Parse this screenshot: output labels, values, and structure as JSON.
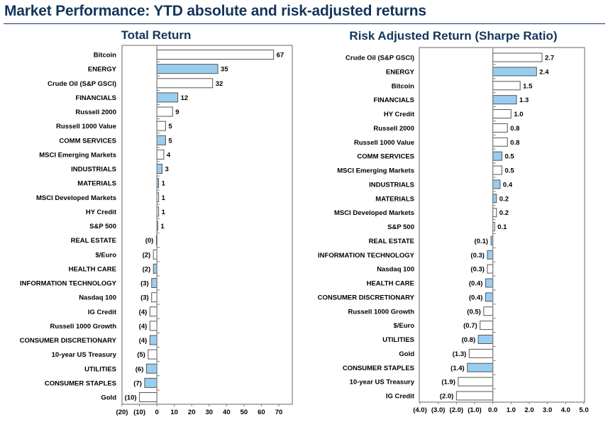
{
  "title": "Market Performance: YTD absolute and risk-adjusted returns",
  "colors": {
    "sector": "#99cdf0",
    "other": "#ffffff",
    "title": "#13355b"
  },
  "chart_data": [
    {
      "type": "bar",
      "orientation": "horizontal",
      "title": "Total Return",
      "xlim": [
        -20,
        75
      ],
      "ticks": [
        -20,
        -10,
        0,
        10,
        20,
        30,
        40,
        50,
        60,
        70
      ],
      "tick_labels": [
        "(20)",
        "(10)",
        "0",
        "10",
        "20",
        "30",
        "40",
        "50",
        "60",
        "70"
      ],
      "items": [
        {
          "label": "Bitcoin",
          "value": 67,
          "display": "67",
          "sector": false
        },
        {
          "label": "ENERGY",
          "value": 35,
          "display": "35",
          "sector": true
        },
        {
          "label": "Crude Oil (S&P GSCI)",
          "value": 32,
          "display": "32",
          "sector": false
        },
        {
          "label": "FINANCIALS",
          "value": 12,
          "display": "12",
          "sector": true
        },
        {
          "label": "Russell 2000",
          "value": 9,
          "display": "9",
          "sector": false
        },
        {
          "label": "Russell 1000 Value",
          "value": 5,
          "display": "5",
          "sector": false
        },
        {
          "label": "COMM SERVICES",
          "value": 5,
          "display": "5",
          "sector": true
        },
        {
          "label": "MSCI Emerging Markets",
          "value": 4,
          "display": "4",
          "sector": false
        },
        {
          "label": "INDUSTRIALS",
          "value": 3,
          "display": "3",
          "sector": true
        },
        {
          "label": "MATERIALS",
          "value": 1,
          "display": "1",
          "sector": true
        },
        {
          "label": "MSCI Developed Markets",
          "value": 1,
          "display": "1",
          "sector": false
        },
        {
          "label": "HY Credit",
          "value": 1,
          "display": "1",
          "sector": false
        },
        {
          "label": "S&P 500",
          "value": 0.5,
          "display": "1",
          "sector": false
        },
        {
          "label": "REAL ESTATE",
          "value": -0.3,
          "display": "(0)",
          "sector": true
        },
        {
          "label": "$/Euro",
          "value": -2,
          "display": "(2)",
          "sector": false
        },
        {
          "label": "HEALTH CARE",
          "value": -2,
          "display": "(2)",
          "sector": true
        },
        {
          "label": "INFORMATION TECHNOLOGY",
          "value": -3,
          "display": "(3)",
          "sector": true
        },
        {
          "label": "Nasdaq 100",
          "value": -3,
          "display": "(3)",
          "sector": false
        },
        {
          "label": "IG Credit",
          "value": -4,
          "display": "(4)",
          "sector": false
        },
        {
          "label": "Russell 1000 Growth",
          "value": -4,
          "display": "(4)",
          "sector": false
        },
        {
          "label": "CONSUMER DISCRETIONARY",
          "value": -4,
          "display": "(4)",
          "sector": true
        },
        {
          "label": "10-year US Treasury",
          "value": -5,
          "display": "(5)",
          "sector": false
        },
        {
          "label": "UTILITIES",
          "value": -6,
          "display": "(6)",
          "sector": true
        },
        {
          "label": "CONSUMER STAPLES",
          "value": -7,
          "display": "(7)",
          "sector": true
        },
        {
          "label": "Gold",
          "value": -10,
          "display": "(10)",
          "sector": false
        }
      ]
    },
    {
      "type": "bar",
      "orientation": "horizontal",
      "title": "Risk Adjusted Return (Sharpe Ratio)",
      "xlim": [
        -4,
        5
      ],
      "ticks": [
        -4,
        -3,
        -2,
        -1,
        0,
        1,
        2,
        3,
        4,
        5
      ],
      "tick_labels": [
        "(4.0)",
        "(3.0)",
        "(2.0)",
        "(1.0)",
        "0.0",
        "1.0",
        "2.0",
        "3.0",
        "4.0",
        "5.0"
      ],
      "items": [
        {
          "label": "Crude Oil (S&P GSCI)",
          "value": 2.7,
          "display": "2.7",
          "sector": false
        },
        {
          "label": "ENERGY",
          "value": 2.4,
          "display": "2.4",
          "sector": true
        },
        {
          "label": "Bitcoin",
          "value": 1.5,
          "display": "1.5",
          "sector": false
        },
        {
          "label": "FINANCIALS",
          "value": 1.3,
          "display": "1.3",
          "sector": true
        },
        {
          "label": "HY Credit",
          "value": 1.0,
          "display": "1.0",
          "sector": false
        },
        {
          "label": "Russell 2000",
          "value": 0.8,
          "display": "0.8",
          "sector": false
        },
        {
          "label": "Russell 1000 Value",
          "value": 0.8,
          "display": "0.8",
          "sector": false
        },
        {
          "label": "COMM SERVICES",
          "value": 0.5,
          "display": "0.5",
          "sector": true
        },
        {
          "label": "MSCI Emerging Markets",
          "value": 0.5,
          "display": "0.5",
          "sector": false
        },
        {
          "label": "INDUSTRIALS",
          "value": 0.4,
          "display": "0.4",
          "sector": true
        },
        {
          "label": "MATERIALS",
          "value": 0.2,
          "display": "0.2",
          "sector": true
        },
        {
          "label": "MSCI Developed Markets",
          "value": 0.2,
          "display": "0.2",
          "sector": false
        },
        {
          "label": "S&P 500",
          "value": 0.1,
          "display": "0.1",
          "sector": false
        },
        {
          "label": "REAL ESTATE",
          "value": -0.1,
          "display": "(0.1)",
          "sector": true
        },
        {
          "label": "INFORMATION TECHNOLOGY",
          "value": -0.3,
          "display": "(0.3)",
          "sector": true
        },
        {
          "label": "Nasdaq 100",
          "value": -0.3,
          "display": "(0.3)",
          "sector": false
        },
        {
          "label": "HEALTH CARE",
          "value": -0.4,
          "display": "(0.4)",
          "sector": true
        },
        {
          "label": "CONSUMER DISCRETIONARY",
          "value": -0.4,
          "display": "(0.4)",
          "sector": true
        },
        {
          "label": "Russell 1000 Growth",
          "value": -0.5,
          "display": "(0.5)",
          "sector": false
        },
        {
          "label": "$/Euro",
          "value": -0.7,
          "display": "(0.7)",
          "sector": false
        },
        {
          "label": "UTILITIES",
          "value": -0.8,
          "display": "(0.8)",
          "sector": true
        },
        {
          "label": "Gold",
          "value": -1.3,
          "display": "(1.3)",
          "sector": false
        },
        {
          "label": "CONSUMER STAPLES",
          "value": -1.4,
          "display": "(1.4)",
          "sector": true
        },
        {
          "label": "10-year US Treasury",
          "value": -1.9,
          "display": "(1.9)",
          "sector": false
        },
        {
          "label": "IG Credit",
          "value": -2.0,
          "display": "(2.0)",
          "sector": false
        }
      ]
    }
  ]
}
